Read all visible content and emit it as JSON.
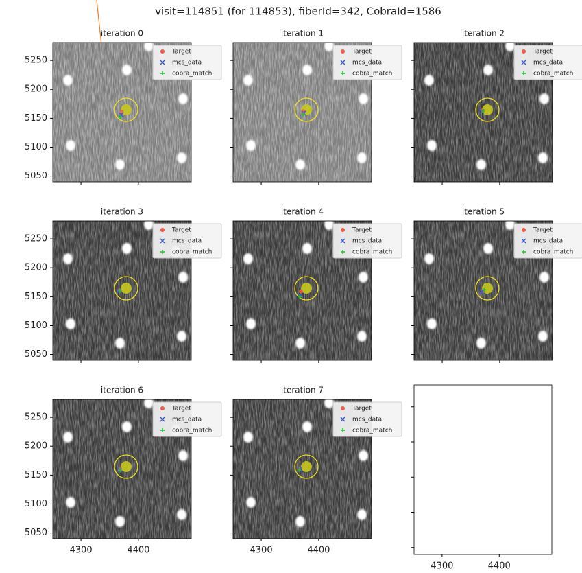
{
  "chart_data": {
    "type": "image-grid",
    "title": "visit=114851 (for 114853), fiberId=342, CobraId=1586",
    "xlim": [
      4251,
      4492
    ],
    "ylim": [
      5040,
      5281
    ],
    "xticks": [
      4300,
      4400
    ],
    "yticks": [
      5050,
      5100,
      5150,
      5200,
      5250
    ],
    "series": [
      {
        "name": "Target",
        "color": "#f05a46"
      },
      {
        "name": "mcs_data",
        "color": "#3b5bdb"
      },
      {
        "name": "cobra_match",
        "color": "#22c02a"
      }
    ],
    "panels": [
      {
        "title": "iteration 0",
        "points": [
          [
            4371,
            5161
          ],
          [
            4370,
            5156
          ],
          [
            4368,
            5152
          ]
        ]
      },
      {
        "title": "iteration 1",
        "points": [
          [
            4373,
            5162
          ],
          [
            4374,
            5159
          ],
          [
            4373,
            5157
          ]
        ]
      },
      {
        "title": "iteration 2",
        "points": [
          [
            4370,
            5163
          ],
          [
            4369,
            5162
          ],
          [
            4371,
            5162
          ]
        ]
      },
      {
        "title": "iteration 3",
        "points": [
          [
            4367,
            5161
          ],
          [
            4366,
            5160
          ],
          [
            4368,
            5160
          ]
        ]
      },
      {
        "title": "iteration 4",
        "points": [
          [
            4369,
            5159
          ],
          [
            4368,
            5152
          ],
          [
            4367,
            5150
          ]
        ]
      },
      {
        "title": "iteration 5",
        "points": [
          [
            4370,
            5160
          ],
          [
            4369,
            5159
          ],
          [
            4373,
            5162
          ]
        ]
      },
      {
        "title": "iteration 6",
        "points": [
          [
            4368,
            5160
          ],
          [
            4367,
            5159
          ],
          [
            4368,
            5158
          ]
        ]
      },
      {
        "title": "iteration 7",
        "points": [
          [
            4366,
            5160
          ],
          [
            4367,
            5160
          ],
          [
            4366,
            5159
          ]
        ]
      }
    ]
  }
}
